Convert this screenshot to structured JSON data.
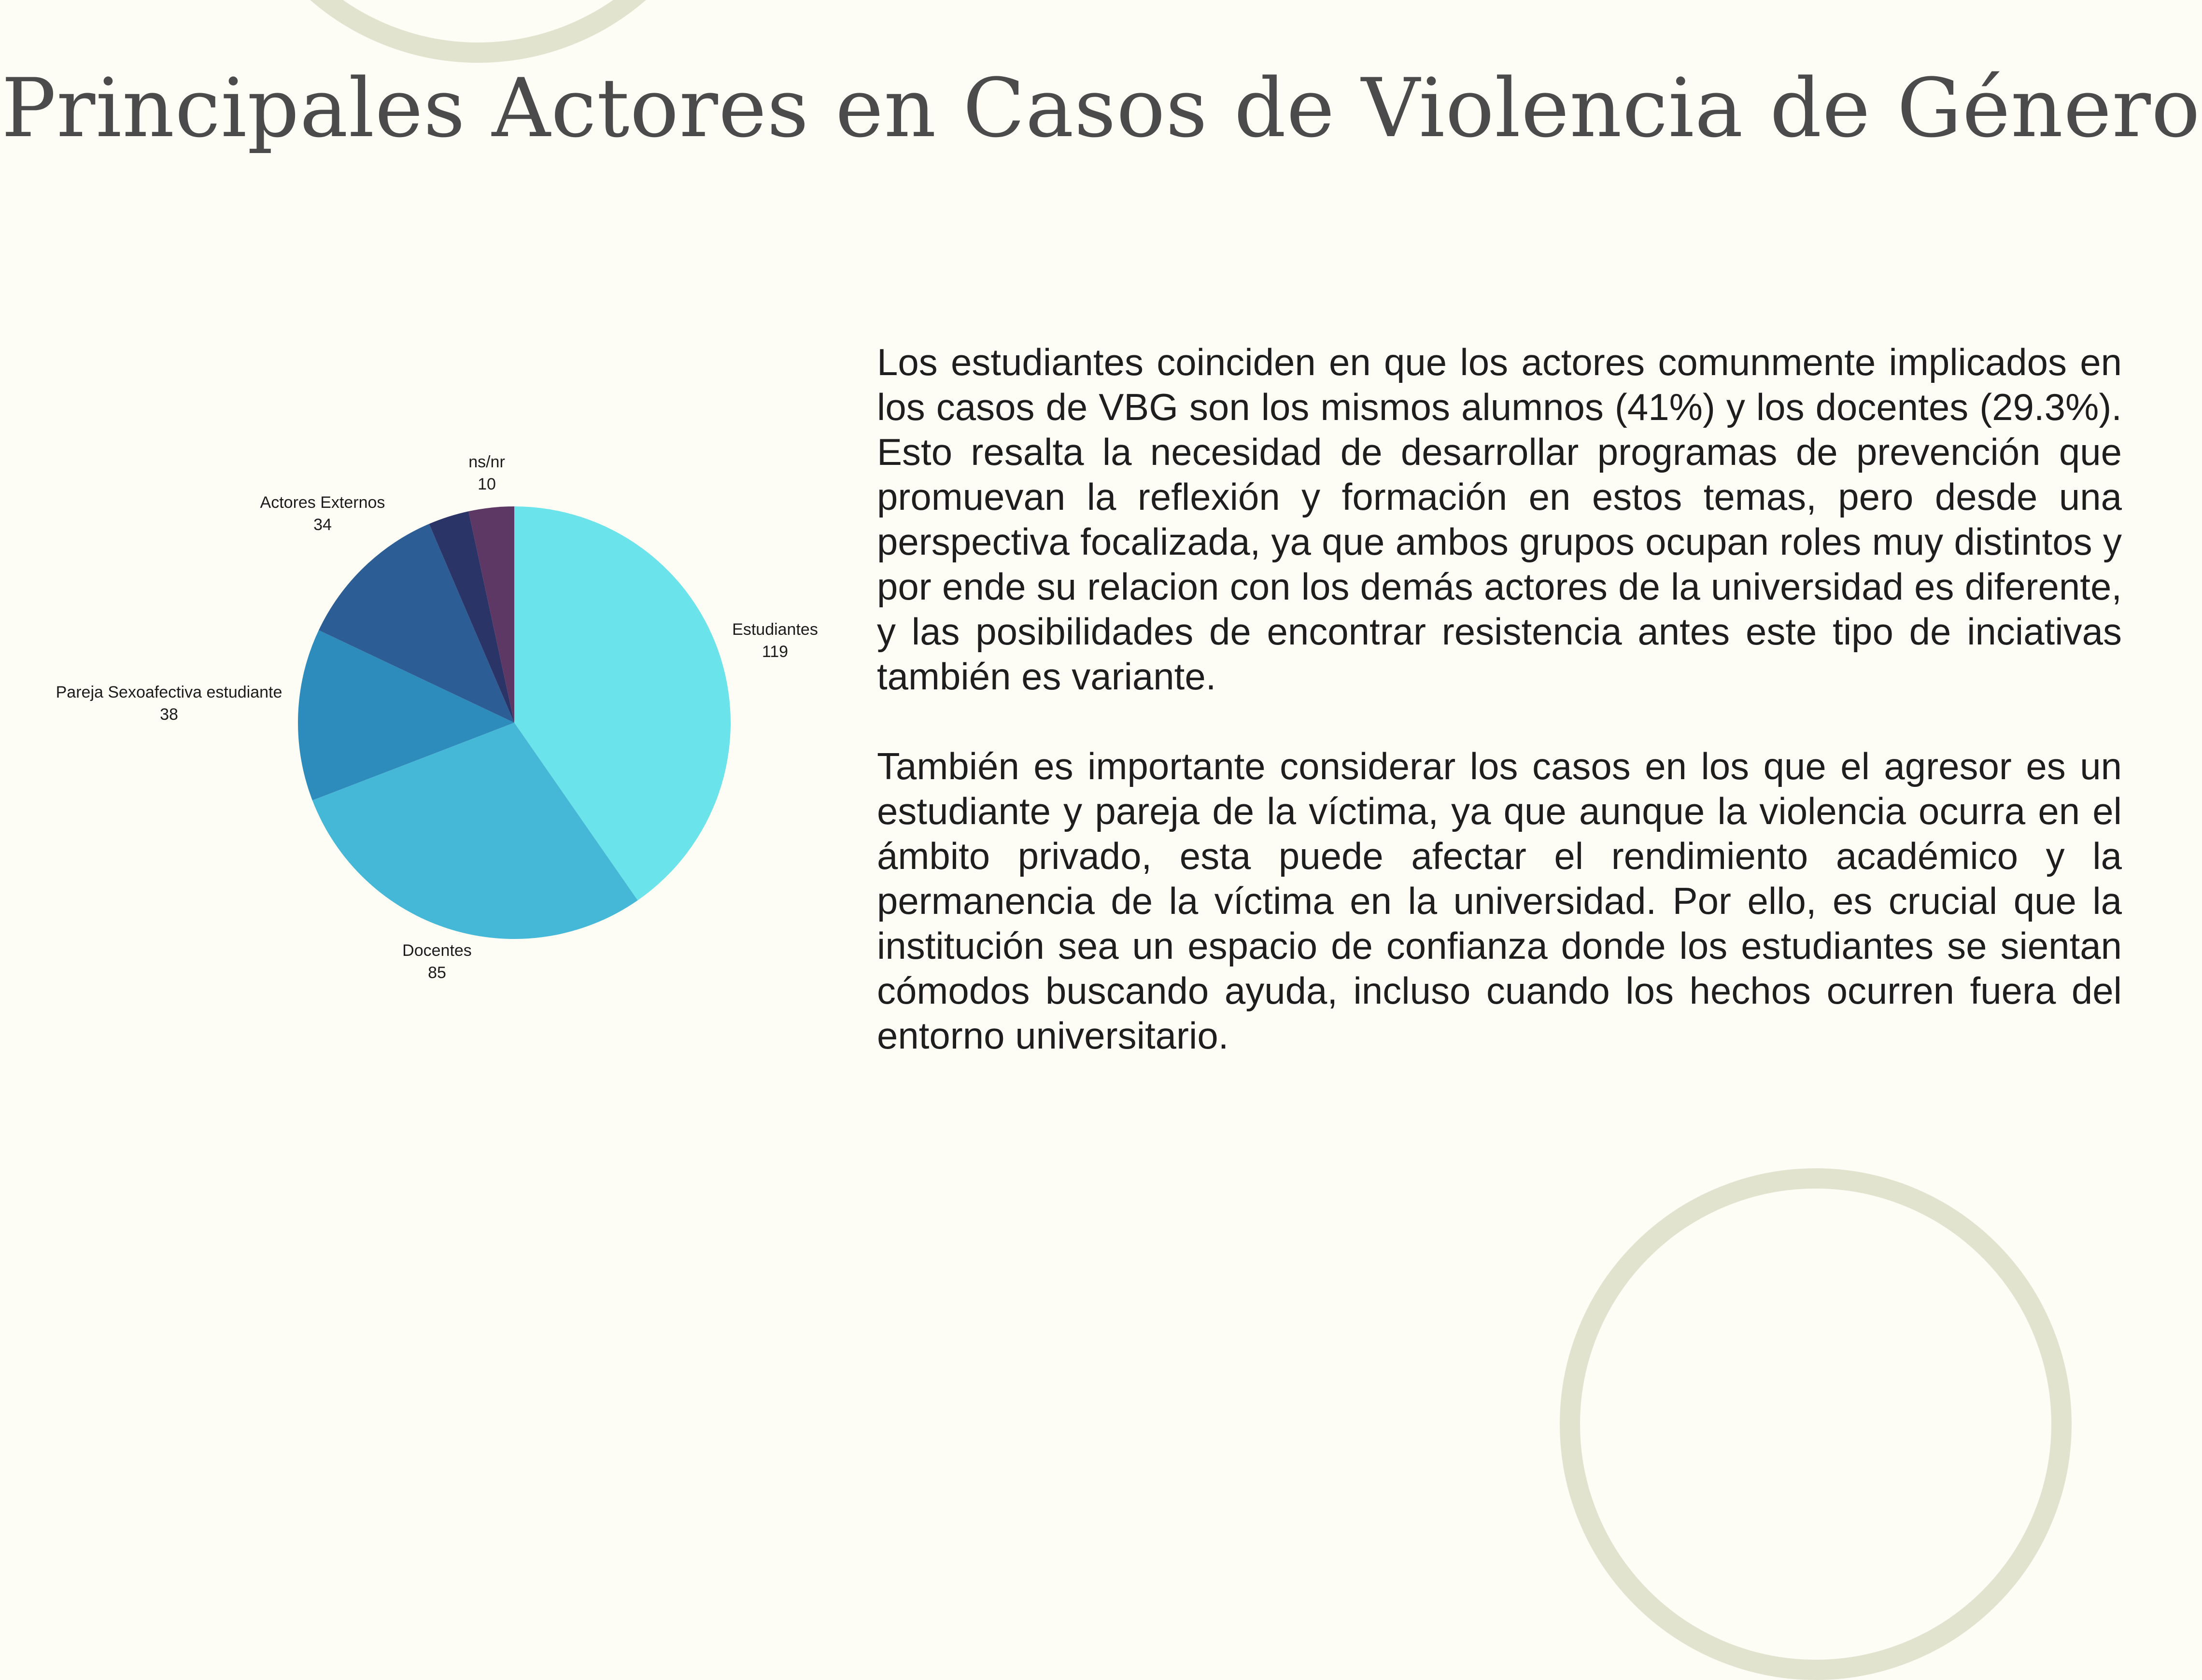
{
  "title": "Principales Actores en Casos de Violencia de Género",
  "chart_data": {
    "type": "pie",
    "title": "",
    "start": "top",
    "direction": "clockwise",
    "slices": [
      {
        "label": "Estudiantes",
        "value": 119,
        "color": "#6ae4ea"
      },
      {
        "label": "Docentes",
        "value": 85,
        "color": "#45b8d7"
      },
      {
        "label": "Pareja Sexoafectiva estudiante",
        "value": 38,
        "color": "#2e8cbc"
      },
      {
        "label": "Actores Externos",
        "value": 34,
        "color": "#2c5d94"
      },
      {
        "label": "",
        "value": 9,
        "color": "#2b3467"
      },
      {
        "label": "ns/nr",
        "value": 10,
        "color": "#5e3865"
      }
    ]
  },
  "paragraphs": [
    "Los estudiantes coinciden en que los actores comunmente implicados en los casos de VBG son los mismos alumnos (41%) y los docentes (29.3%). Esto resalta la necesidad de desarrollar programas de prevención que promuevan la reflexión y formación en estos temas, pero desde una perspectiva focalizada, ya que ambos grupos ocupan roles muy distintos y por ende su relacion con los demás actores de la universidad es diferente, y las posibilidades de encontrar resistencia antes este tipo de inciativas también es variante.",
    "También es importante considerar los casos en los que el agresor es un estudiante y pareja de la víctima, ya que aunque la violencia ocurra en el ámbito privado, esta puede afectar el rendimiento académico y la permanencia de la víctima en la universidad. Por ello, es crucial que la institución sea un espacio de confianza donde los estudiantes se sientan cómodos buscando ayuda, incluso cuando los hechos ocurren fuera del entorno universitario."
  ]
}
